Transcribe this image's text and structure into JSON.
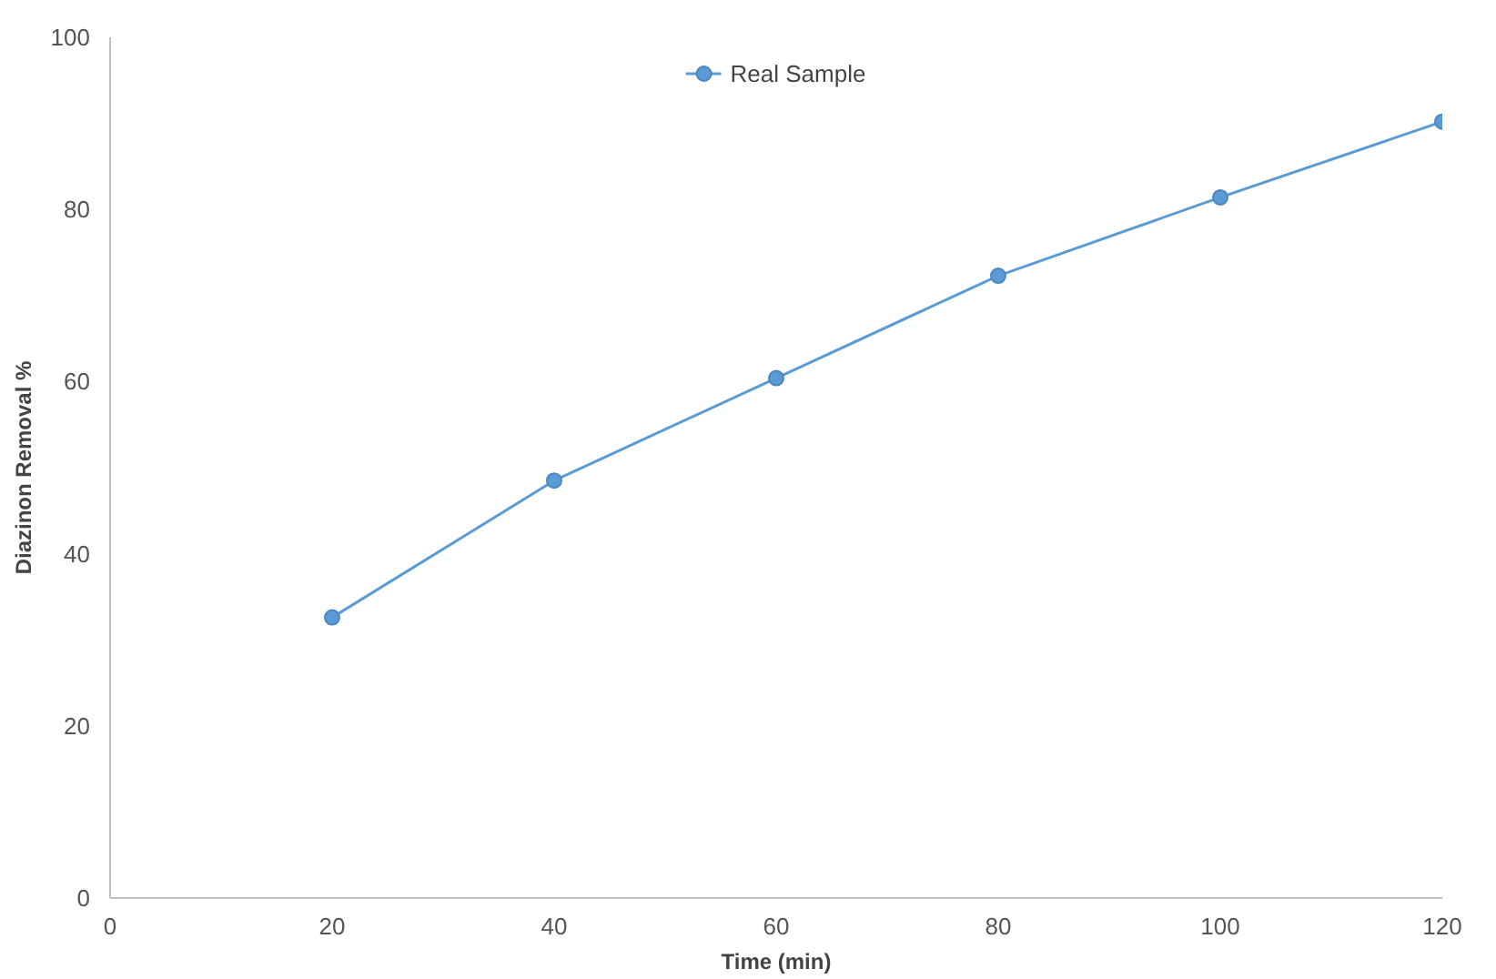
{
  "chart_data": {
    "type": "line",
    "xlabel": "Time (min)",
    "ylabel": "Diazinon Removal %",
    "x": [
      20,
      40,
      60,
      80,
      100,
      120
    ],
    "series": [
      {
        "name": "Real Sample",
        "color": "#5b9bd5",
        "values": [
          32.6,
          48.5,
          60.4,
          72.3,
          81.4,
          90.2
        ]
      }
    ],
    "xlim": [
      0,
      120
    ],
    "ylim": [
      0,
      100
    ],
    "xticks": [
      0,
      20,
      40,
      60,
      80,
      100,
      120
    ],
    "yticks": [
      0,
      20,
      40,
      60,
      80,
      100
    ],
    "grid": false,
    "legend": "top",
    "marker": "circle",
    "line_style": "solid"
  }
}
